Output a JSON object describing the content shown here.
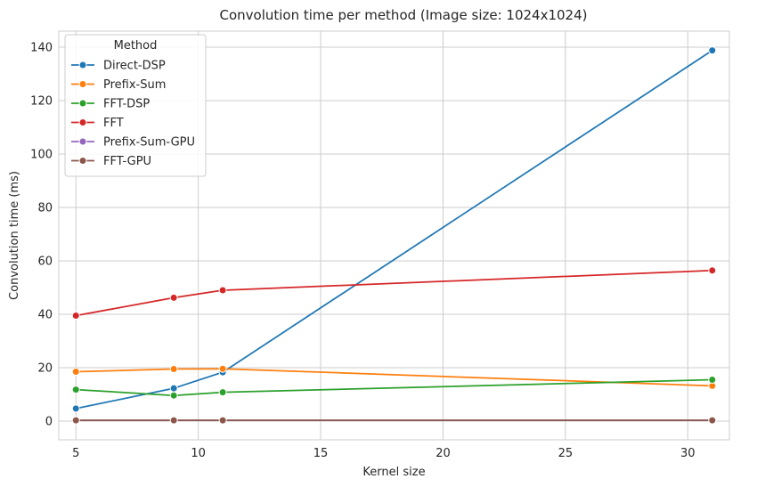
{
  "chart_data": {
    "type": "line",
    "title": "Convolution time per method (Image size: 1024x1024)",
    "xlabel": "Kernel size",
    "ylabel": "Convolution time (ms)",
    "x": [
      5,
      9,
      11,
      31
    ],
    "xlim": [
      4.3,
      31.7
    ],
    "ylim": [
      -7,
      146
    ],
    "xticks": [
      5,
      10,
      15,
      20,
      25,
      30
    ],
    "yticks": [
      0,
      20,
      40,
      60,
      80,
      100,
      120,
      140
    ],
    "grid": true,
    "legend": {
      "title": "Method",
      "placement": "top-left"
    },
    "series": [
      {
        "name": "Direct-DSP",
        "color": "#1f77b4",
        "values": [
          4.7,
          12.3,
          18.3,
          138.8
        ]
      },
      {
        "name": "Prefix-Sum",
        "color": "#ff7f0e",
        "values": [
          18.5,
          19.5,
          19.6,
          13.2
        ]
      },
      {
        "name": "FFT-DSP",
        "color": "#2ca02c",
        "values": [
          11.8,
          9.6,
          10.8,
          15.5
        ]
      },
      {
        "name": "FFT",
        "color": "#d62728",
        "values": [
          39.5,
          46.2,
          49.0,
          56.4
        ]
      },
      {
        "name": "Prefix-Sum-GPU",
        "color": "#9467bd",
        "values": [
          0.3,
          0.3,
          0.3,
          0.3
        ]
      },
      {
        "name": "FFT-GPU",
        "color": "#8c564b",
        "values": [
          0.3,
          0.3,
          0.3,
          0.3
        ]
      }
    ]
  }
}
